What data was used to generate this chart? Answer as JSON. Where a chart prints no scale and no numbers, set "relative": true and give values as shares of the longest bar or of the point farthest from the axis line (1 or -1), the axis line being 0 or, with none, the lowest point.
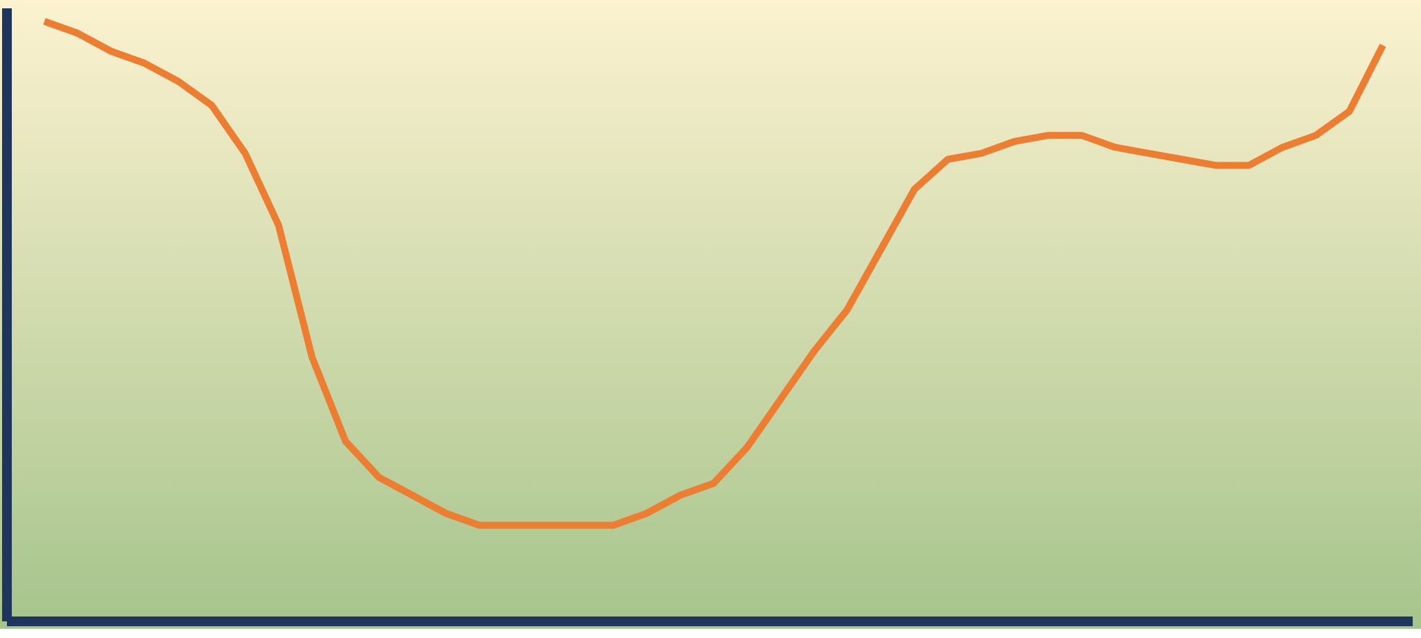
{
  "chart_data": {
    "type": "line",
    "relative": true,
    "categories": [
      null,
      null,
      null,
      null,
      null,
      null,
      null,
      null,
      null,
      null,
      null,
      null,
      null,
      null,
      null,
      null,
      null,
      null,
      null,
      null,
      null,
      null,
      null,
      null,
      null,
      null,
      null,
      null,
      null,
      null,
      null,
      null,
      null,
      null,
      null,
      null,
      null,
      null,
      null,
      null,
      null
    ],
    "series": [
      {
        "color": "#ed7d31",
        "values": [
          1.0,
          0.98,
          0.95,
          0.93,
          0.9,
          0.86,
          0.78,
          0.66,
          0.44,
          0.3,
          0.24,
          0.21,
          0.18,
          0.16,
          0.16,
          0.16,
          0.16,
          0.16,
          0.18,
          0.21,
          0.23,
          0.29,
          0.37,
          0.45,
          0.52,
          0.62,
          0.72,
          0.77,
          0.78,
          0.8,
          0.81,
          0.81,
          0.79,
          0.78,
          0.77,
          0.76,
          0.76,
          0.79,
          0.81,
          0.85,
          0.96
        ]
      }
    ]
  }
}
